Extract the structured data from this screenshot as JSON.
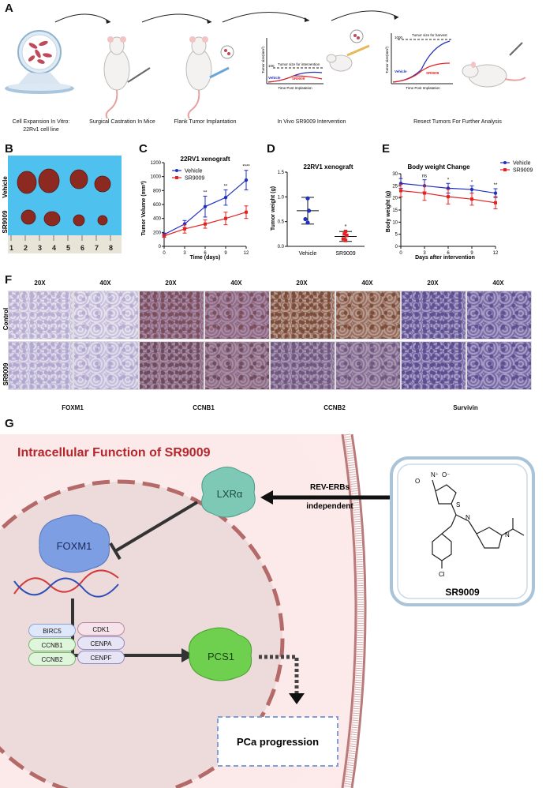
{
  "panels": {
    "a": "A",
    "b": "B",
    "c": "C",
    "d": "D",
    "e": "E",
    "f": "F",
    "g": "G"
  },
  "panelA": {
    "steps": [
      {
        "label": "Cell Expansion In Vitro:",
        "sub": "22Rv1 cell line"
      },
      {
        "label": "Surgical Castration In Mice"
      },
      {
        "label": "Flank Tumor Implantation"
      },
      {
        "label": "In Vivo SR9009 Intervention"
      },
      {
        "label": "Resect Tumors For Further Analysis"
      }
    ],
    "mini1": {
      "ylabel": "Tumor size(mm³)",
      "xlabel": "Time Post Implatation",
      "threshold": "100",
      "threshold_label": "Tumor size for intervention",
      "vehicle": "Vehicle",
      "drug": "SR9009"
    },
    "mini2": {
      "ylabel": "Tumor size(mm³)",
      "xlabel": "Time Post Implatation",
      "threshold": "1000",
      "threshold_label": "Tumor size for harvest",
      "vehicle": "Vehicle",
      "drug": "SR9009"
    }
  },
  "panelB": {
    "rows": [
      "Vehicle",
      "SR9009"
    ],
    "ruler": [
      "1",
      "2",
      "3",
      "4",
      "5",
      "6",
      "7",
      "8"
    ]
  },
  "chart_data": [
    {
      "type": "line",
      "title": "22RV1 xenograft",
      "xlabel": "Time (days)",
      "ylabel": "Tumor Volume (mm³)",
      "ylim": [
        0,
        1200
      ],
      "yticks": [
        "0",
        "200",
        "400",
        "600",
        "800",
        "1000",
        "1200"
      ],
      "x": [
        0,
        3,
        6,
        9,
        12
      ],
      "series": [
        {
          "name": "Vehicle",
          "color": "#1f2fbf",
          "values": [
            170,
            320,
            570,
            700,
            950
          ],
          "err": [
            20,
            50,
            150,
            110,
            140
          ]
        },
        {
          "name": "SR9009",
          "color": "#e52222",
          "values": [
            150,
            250,
            320,
            400,
            490
          ],
          "err": [
            20,
            60,
            60,
            90,
            90
          ]
        }
      ],
      "annotations": [
        {
          "x": 6,
          "text": "**"
        },
        {
          "x": 9,
          "text": "**"
        },
        {
          "x": 12,
          "text": "****"
        }
      ]
    },
    {
      "type": "scatter",
      "title": "22RV1 xenograft",
      "ylabel": "Tumor weight (g)",
      "ylim": [
        0,
        1.5
      ],
      "yticks": [
        "0.0",
        "0.5",
        "1.0",
        "1.5"
      ],
      "categories": [
        "Vehicle",
        "SR9009"
      ],
      "groups": [
        {
          "name": "Vehicle",
          "color": "#1f2fbf",
          "mean": 0.72,
          "err": 0.27,
          "points": [
            0.97,
            0.72,
            0.55,
            0.48
          ]
        },
        {
          "name": "SR9009",
          "color": "#e52222",
          "mean": 0.2,
          "err": 0.1,
          "points": [
            0.3,
            0.22,
            0.15,
            0.12,
            0.25
          ]
        }
      ],
      "annotation": "*"
    },
    {
      "type": "line",
      "title": "Body weight Change",
      "xlabel": "Days after intervention",
      "ylabel": "Body weight (g)",
      "ylim": [
        0,
        30
      ],
      "yticks": [
        "0",
        "5",
        "10",
        "15",
        "20",
        "25",
        "30"
      ],
      "x": [
        0,
        3,
        6,
        9,
        12
      ],
      "legend": "right",
      "series": [
        {
          "name": "Vehicle",
          "color": "#1f2fbf",
          "values": [
            26,
            25,
            24,
            23.5,
            22
          ],
          "err": [
            2,
            2.5,
            2,
            1.5,
            1.8
          ]
        },
        {
          "name": "SR9009",
          "color": "#e52222",
          "values": [
            23,
            22,
            20.5,
            19.5,
            18
          ],
          "err": [
            2.5,
            3,
            3,
            2.5,
            2.5
          ]
        }
      ],
      "annotations": [
        {
          "x": 3,
          "text": "ns"
        },
        {
          "x": 6,
          "text": "*"
        },
        {
          "x": 9,
          "text": "*"
        },
        {
          "x": 12,
          "text": "**"
        }
      ]
    }
  ],
  "panelF": {
    "rows": [
      "Control",
      "SR9009"
    ],
    "groups": [
      {
        "name": "FOXM1",
        "mag": [
          "20X",
          "40X"
        ]
      },
      {
        "name": "CCNB1",
        "mag": [
          "20X",
          "40X"
        ]
      },
      {
        "name": "CCNB2",
        "mag": [
          "20X",
          "40X"
        ]
      },
      {
        "name": "Survivin",
        "mag": [
          "20X",
          "40X"
        ]
      }
    ]
  },
  "panelG": {
    "title": "Intracellular Function of SR9009",
    "lxr": "LXRα",
    "foxm1": "FOXM1",
    "pcs1": "PCS1",
    "rev1": "REV-ERBs",
    "rev2": "independent",
    "drug": "SR9009",
    "outcome": "PCa progression",
    "genes_left": [
      "BIRC5",
      "CCNB1",
      "CCNB2"
    ],
    "genes_right": [
      "CDK1",
      "CENPA",
      "CENPF"
    ],
    "colors": {
      "title": "#b3262c",
      "lxr": "#7ec9b5",
      "foxm1": "#7d9ee3",
      "pcs1": "#6fcf4e"
    }
  }
}
